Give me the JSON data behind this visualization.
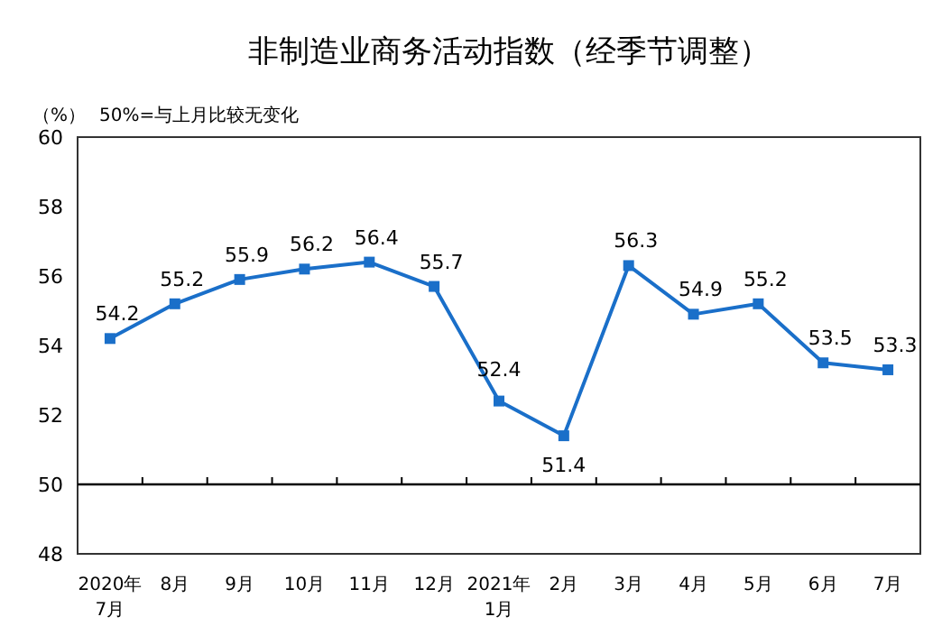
{
  "chart_data": {
    "type": "line",
    "title": "非制造业商务活动指数（经季节调整）",
    "ylabel": "（%）",
    "annotations": [
      "50%=与上月比较无变化"
    ],
    "categories": [
      "2020年\n7月",
      "8月",
      "9月",
      "10月",
      "11月",
      "12月",
      "2021年\n1月",
      "2月",
      "3月",
      "4月",
      "5月",
      "6月",
      "7月"
    ],
    "series": [
      {
        "color": "#1a6fc9",
        "values": [
          54.2,
          55.2,
          55.9,
          56.2,
          56.4,
          55.7,
          52.4,
          51.4,
          56.3,
          54.9,
          55.2,
          53.5,
          53.3
        ]
      }
    ],
    "ylim": [
      48,
      60
    ],
    "yticks": [
      48,
      50,
      52,
      54,
      56,
      58,
      60
    ],
    "ref_lines": [
      {
        "axis": "y",
        "value": 50
      }
    ],
    "data_labels": true,
    "marker": "square",
    "line_style": "solid",
    "grid": false
  }
}
